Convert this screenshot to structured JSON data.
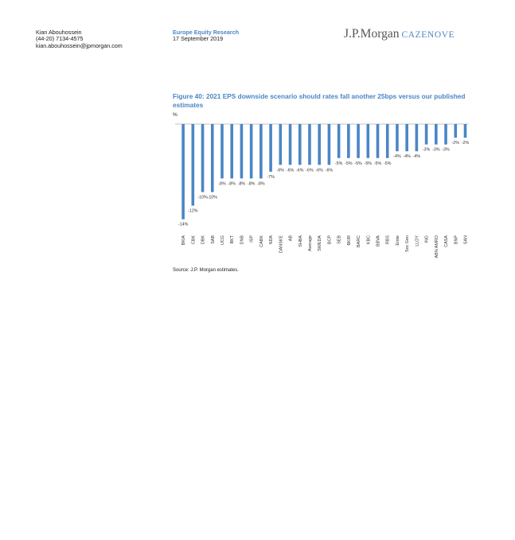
{
  "header": {
    "author_name": "Kian Abouhossein",
    "author_phone": "(44-20) 7134-4575",
    "author_email": "kian.abouhossein@jpmorgan.com",
    "department": "Europe Equity Research",
    "date": "17 September 2019",
    "brand_main": "J.P.Morgan",
    "brand_sub": "CAZENOVE"
  },
  "figure": {
    "title": "Figure 40: 2021 EPS downside scenario should rates fall another 25bps versus our published estimates",
    "unit": "%",
    "source": "Source: J.P. Morgan estimates."
  },
  "colors": {
    "bar": "#4a86c5",
    "accent": "#4a86c5",
    "axis": "#888888"
  },
  "chart_data": {
    "type": "bar",
    "title": "Figure 40: 2021 EPS downside scenario should rates fall another 25bps versus our published estimates",
    "xlabel": "",
    "ylabel": "%",
    "ylim": [
      -14,
      0
    ],
    "grid": false,
    "categories": [
      "BKIA",
      "CBK",
      "DBK",
      "SAB",
      "UCG",
      "BKT",
      "DNB",
      "ISP",
      "CABK",
      "NDA",
      "DANSKE",
      "AB",
      "SHBA",
      "Average",
      "SWEDA",
      "BCP",
      "SEB",
      "BKIR",
      "BARC",
      "KBC",
      "BBVA",
      "RBS",
      "Erste",
      "Soc Gen",
      "LLOY",
      "ING",
      "ABN AMRO",
      "CASA",
      "BNP",
      "SAN"
    ],
    "values": [
      -14,
      -12,
      -10,
      -10,
      -8,
      -8,
      -8,
      -8,
      -8,
      -7,
      -6,
      -6,
      -6,
      -6,
      -6,
      -6,
      -5,
      -5,
      -5,
      -5,
      -5,
      -5,
      -4,
      -4,
      -4,
      -3,
      -3,
      -3,
      -2,
      -2
    ],
    "labels": [
      "-14%",
      "-12%",
      "-10%",
      "-10%",
      "-8%",
      "-8%",
      "-8%",
      "-8%",
      "-8%",
      "-7%",
      "-6%",
      "-6%",
      "-6%",
      "-6%",
      "-6%",
      "-6%",
      "-5%",
      "-5%",
      "-5%",
      "-5%",
      "-5%",
      "-5%",
      "-4%",
      "-4%",
      "-4%",
      "-3%",
      "-3%",
      "-3%",
      "-2%",
      "-2%"
    ]
  }
}
